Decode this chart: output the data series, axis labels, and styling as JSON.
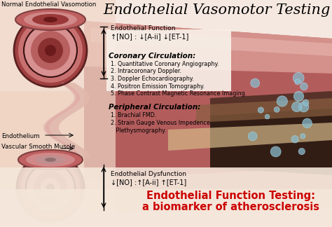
{
  "title": "Endothelial Vasomotor Testing",
  "title_fontsize": 15,
  "bg_color": "#f0d0c0",
  "top_left_label": "Normal Endothelial Vasomotion",
  "ef_label": "Endothelial Function",
  "ef_formula": "↑[NO] : ↓[A-ii] ↓[ET-1]",
  "coronary_header": "Coronary Circulation:",
  "coronary_items": [
    "1. Quantitative Coronary Angiography.",
    "2. Intracoronary Doppler.",
    "3. Doppler Echocardiography.",
    "4. Positron Emission Tomography.",
    "5. Phase Contrast Magnetic Resonance Imaging."
  ],
  "peripheral_header": "Peripheral Circulation:",
  "peripheral_items": [
    "1. Brachial FMD.",
    "2. Strain Gauge Venous Impedence",
    "   Plethysmography."
  ],
  "endothelium_label": "Endothelium",
  "smooth_muscle_label": "Vascular Smooth Muscle",
  "dysfunction_label": "Endothelial Dysfunction",
  "dysfunction_formula": "↓[NO] :↑[A-ii] ↑[ET-1]",
  "bottom_line1": "Endothelial Function Testing:",
  "bottom_line2": "a biomarker of atherosclerosis",
  "bottom_color": "#cc0000",
  "arrow_color": "#000000",
  "text_color": "#000000"
}
